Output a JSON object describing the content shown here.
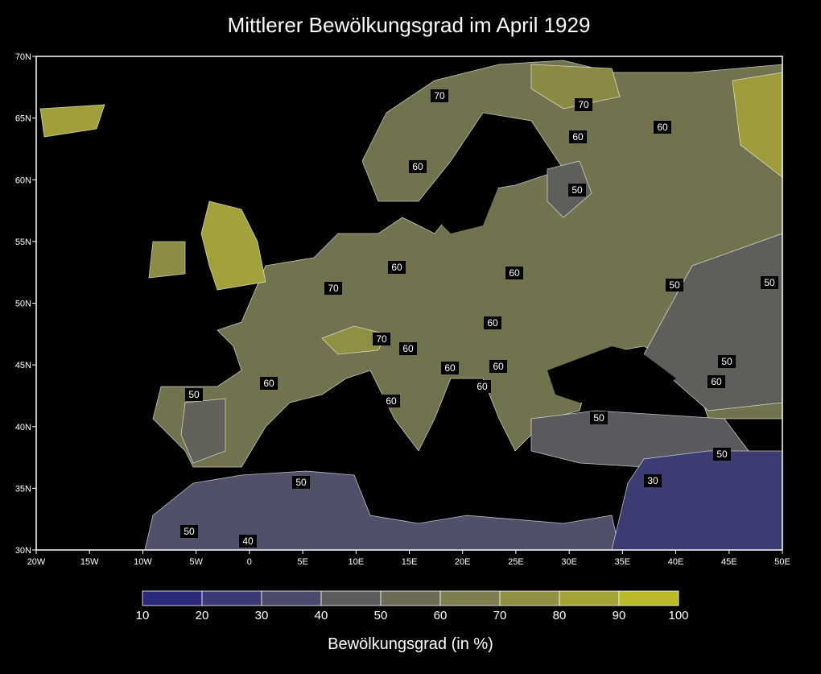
{
  "title": "Mittlerer Bewölkungsgrad im April 1929",
  "map": {
    "lonlim": [
      -20,
      50
    ],
    "latlim": [
      30,
      70
    ],
    "lon_ticks": [
      {
        "value": -20,
        "label": "20W"
      },
      {
        "value": -15,
        "label": "15W"
      },
      {
        "value": -10,
        "label": "10W"
      },
      {
        "value": -5,
        "label": "5W"
      },
      0,
      {
        "value": 5,
        "label": "5E"
      },
      {
        "value": 10,
        "label": "10E"
      },
      {
        "value": 15,
        "label": "15E"
      },
      {
        "value": 20,
        "label": "20E"
      },
      {
        "value": 25,
        "label": "25E"
      },
      {
        "value": 30,
        "label": "30E"
      },
      {
        "value": 35,
        "label": "35E"
      },
      {
        "value": 40,
        "label": "40E"
      },
      {
        "value": 45,
        "label": "45E"
      },
      {
        "value": 50,
        "label": "50E"
      }
    ],
    "lat_ticks": [
      {
        "value": 30,
        "label": "30N"
      },
      {
        "value": 35,
        "label": "35N"
      },
      {
        "value": 40,
        "label": "40N"
      },
      {
        "value": 45,
        "label": "45N"
      },
      {
        "value": 50,
        "label": "50N"
      },
      {
        "value": 55,
        "label": "55N"
      },
      {
        "value": 60,
        "label": "60N"
      },
      {
        "value": 65,
        "label": "65N"
      },
      {
        "value": 70,
        "label": "70N"
      }
    ],
    "contour_labels": [
      70,
      70,
      60,
      60,
      60,
      50,
      60,
      60,
      70,
      50,
      50,
      70,
      60,
      60,
      60,
      60,
      50,
      60,
      50,
      60,
      60,
      60,
      50,
      50,
      50,
      30,
      50,
      40
    ]
  },
  "colorbar": {
    "ticks": [
      10,
      20,
      30,
      40,
      50,
      60,
      70,
      80,
      90,
      100
    ],
    "colors": [
      "#2a2a7a",
      "#3a3a74",
      "#4a4a6a",
      "#5c5c5e",
      "#6c6c56",
      "#7e7e4e",
      "#909044",
      "#a4a436",
      "#baba28"
    ],
    "title": "Bewölkungsgrad (in %)"
  }
}
